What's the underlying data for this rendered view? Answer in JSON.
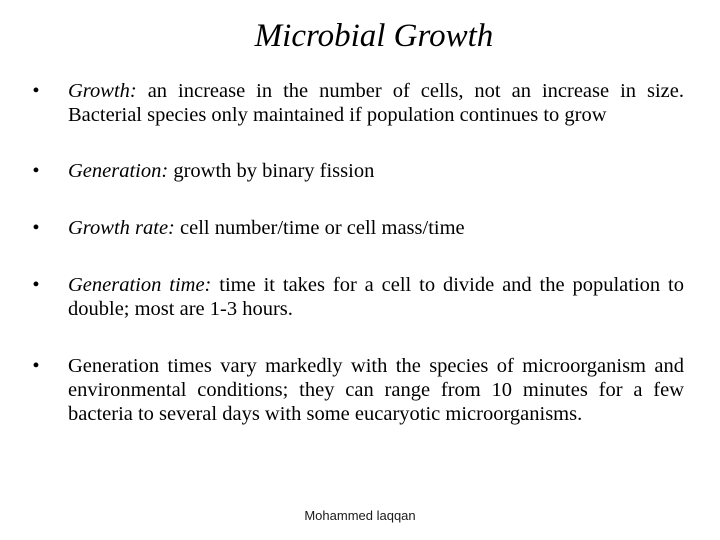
{
  "slide": {
    "title": "Microbial Growth",
    "bullet_marker": "•",
    "bullets": [
      {
        "term": "Growth:",
        "text": " an increase in the number of cells, not an increase in size. Bacterial species only maintained if population continues to grow"
      },
      {
        "term": "Generation:",
        "text": " growth by binary fission"
      },
      {
        "term": "Growth rate:",
        "text": " cell number/time or cell mass/time"
      },
      {
        "term": "Generation time:",
        "text": " time it takes for a cell to divide and the population to double; most are 1-3 hours."
      },
      {
        "term": "",
        "text": "Generation times vary markedly with the species of microorganism and environmental conditions; they can range from 10 minutes for a few bacteria to several days with some eucaryotic microorganisms."
      }
    ],
    "footer": "Mohammed laqqan"
  }
}
